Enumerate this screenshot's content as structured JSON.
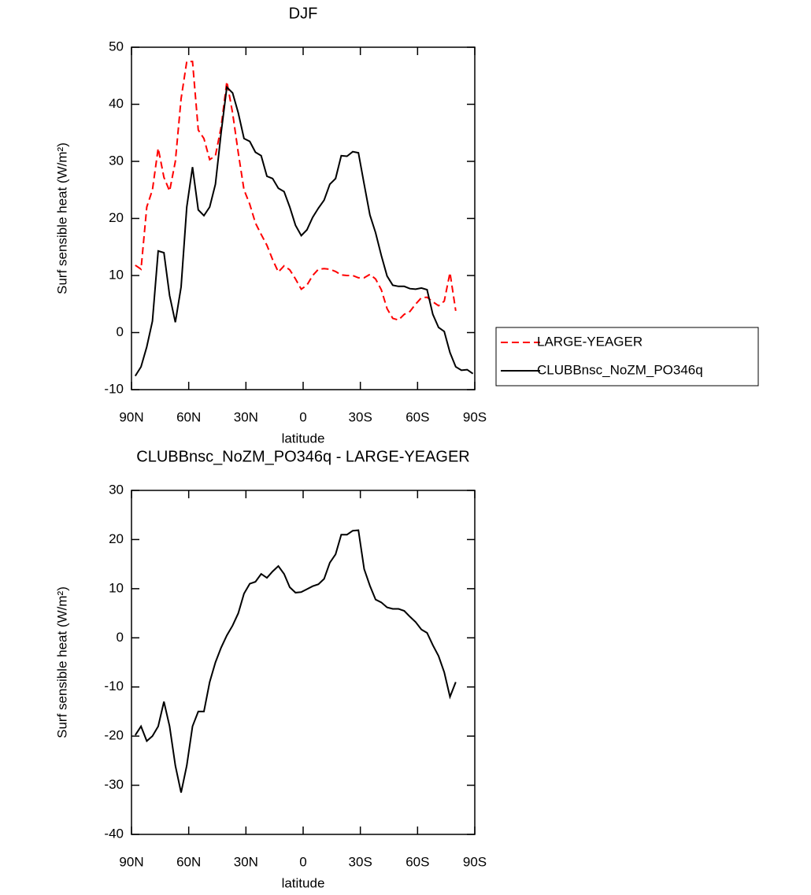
{
  "chart_data": [
    {
      "type": "line",
      "title": "DJF",
      "xlabel": "latitude",
      "ylabel": "Surf sensible heat (W/m²)",
      "xlim": [
        90,
        -90
      ],
      "xticks": [
        {
          "value": 90,
          "label": "90N"
        },
        {
          "value": 60,
          "label": "60N"
        },
        {
          "value": 30,
          "label": "30N"
        },
        0,
        {
          "value": -30,
          "label": "30S"
        },
        {
          "value": -60,
          "label": "60S"
        },
        {
          "value": -90,
          "label": "90S"
        }
      ],
      "ylim": [
        -10,
        50
      ],
      "yticks": [
        -10,
        0,
        10,
        20,
        30,
        40,
        50
      ],
      "legend": "right",
      "x": [
        88,
        85,
        82,
        79,
        76,
        73,
        70,
        67,
        64,
        61,
        58,
        55,
        52,
        49,
        46,
        43,
        40,
        37,
        34,
        31,
        28,
        25,
        22,
        19,
        16,
        13,
        10,
        7,
        4,
        1,
        -2,
        -5,
        -8,
        -11,
        -14,
        -17,
        -20,
        -23,
        -26,
        -29,
        -32,
        -35,
        -38,
        -41,
        -44,
        -47,
        -50,
        -53,
        -56,
        -59,
        -62,
        -65,
        -68,
        -71,
        -74,
        -77,
        -80,
        -83,
        -86,
        -89
      ],
      "series": [
        {
          "name": "LARGE-YEAGER",
          "color": "#ff0000",
          "dash": true,
          "values": [
            11.8,
            11.1,
            22,
            25,
            32.3,
            27.2,
            24.8,
            30,
            41,
            47.5,
            47.5,
            35.5,
            34,
            30.3,
            31,
            36,
            44,
            38.5,
            31.5,
            25,
            22.5,
            19.2,
            17.2,
            15.3,
            12.8,
            10.6,
            11.7,
            11,
            9.4,
            7.6,
            8.3,
            10,
            11.1,
            11.2,
            11.1,
            10.7,
            10.1,
            10,
            10,
            9.6,
            9.6,
            10.2,
            9.4,
            7.5,
            4.2,
            2.5,
            2.2,
            3.2,
            3.7,
            5,
            6.1,
            6.2,
            5.4,
            4.7,
            5.5,
            10.5,
            3.8,
            null,
            null,
            null
          ]
        },
        {
          "name": "CLUBBnsc_NoZM_PO346q",
          "color": "#000000",
          "dash": false,
          "values": [
            -7.6,
            -6,
            -2.5,
            2,
            14.3,
            14,
            6.5,
            1.8,
            8,
            22,
            29,
            21.5,
            20.5,
            22,
            26,
            35,
            43,
            42,
            38.5,
            34,
            33.5,
            31.6,
            31,
            27.4,
            27,
            25.3,
            24.7,
            22,
            18.8,
            17,
            18,
            20.2,
            21.8,
            23.2,
            26,
            27,
            31,
            30.9,
            31.7,
            31.5,
            26,
            20.6,
            17.5,
            13.5,
            9.9,
            8.3,
            8.1,
            8.1,
            7.7,
            7.6,
            7.8,
            7.5,
            3.2,
            0.9,
            0.2,
            -3.5,
            -6,
            -6.6,
            -6.5,
            -7.2
          ]
        }
      ]
    },
    {
      "type": "line",
      "title": "CLUBBnsc_NoZM_PO346q - LARGE-YEAGER",
      "xlabel": "latitude",
      "ylabel": "Surf sensible heat (W/m²)",
      "xlim": [
        90,
        -90
      ],
      "xticks": [
        {
          "value": 90,
          "label": "90N"
        },
        {
          "value": 60,
          "label": "60N"
        },
        {
          "value": 30,
          "label": "30N"
        },
        0,
        {
          "value": -30,
          "label": "30S"
        },
        {
          "value": -60,
          "label": "60S"
        },
        {
          "value": -90,
          "label": "90S"
        }
      ],
      "ylim": [
        -40,
        30
      ],
      "yticks": [
        -40,
        -30,
        -20,
        -10,
        0,
        10,
        20,
        30
      ],
      "x": [
        88,
        85,
        82,
        79,
        76,
        73,
        70,
        67,
        64,
        61,
        58,
        55,
        52,
        49,
        46,
        43,
        40,
        37,
        34,
        31,
        28,
        25,
        22,
        19,
        16,
        13,
        10,
        7,
        4,
        1,
        -2,
        -5,
        -8,
        -11,
        -14,
        -17,
        -20,
        -23,
        -26,
        -29,
        -32,
        -35,
        -38,
        -41,
        -44,
        -47,
        -50,
        -53,
        -56,
        -59,
        -62,
        -65,
        -68,
        -71,
        -74,
        -77,
        -80,
        -83,
        -86,
        -89
      ],
      "series": [
        {
          "color": "#000000",
          "dash": false,
          "values": [
            -19.8,
            -18,
            -21,
            -20,
            -18,
            -13,
            -18,
            -26,
            -31.5,
            -26,
            -18,
            -15,
            -15,
            -9,
            -5,
            -2,
            0.5,
            2.5,
            5,
            9,
            11,
            11.4,
            13,
            12.2,
            13.5,
            14.6,
            13,
            10.3,
            9.2,
            9.3,
            9.9,
            10.5,
            10.9,
            12,
            15.3,
            17,
            21,
            21,
            21.8,
            21.9,
            14,
            10.6,
            7.8,
            7.2,
            6.2,
            5.9,
            5.9,
            5.5,
            4.3,
            3.2,
            1.7,
            1,
            -1.5,
            -3.7,
            -7,
            -12,
            -9,
            null,
            null,
            null
          ]
        }
      ]
    }
  ]
}
